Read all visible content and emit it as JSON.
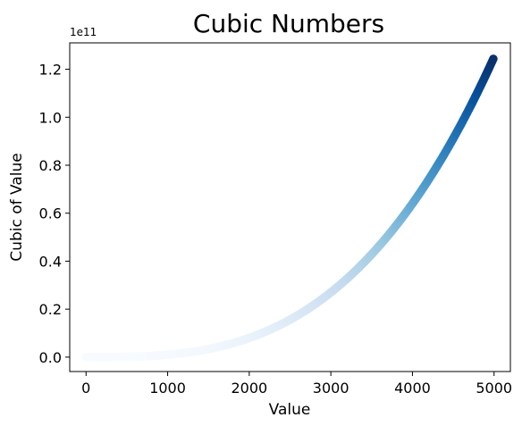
{
  "chart_data": {
    "type": "scatter",
    "title": "Cubic Numbers",
    "xlabel": "Value",
    "ylabel": "Cubic of Value",
    "y_offset_label": "1e11",
    "x_function": "y = x^3",
    "x_range": [
      1,
      5000
    ],
    "xlim": [
      -200,
      5200
    ],
    "ylim": [
      -0.06,
      1.31
    ],
    "y_unit_multiplier": 100000000000,
    "x_ticks": [
      0,
      1000,
      2000,
      3000,
      4000,
      5000
    ],
    "x_tick_labels": [
      "0",
      "1000",
      "2000",
      "3000",
      "4000",
      "5000"
    ],
    "y_ticks": [
      0.0,
      0.2,
      0.4,
      0.6,
      0.8,
      1.0,
      1.2
    ],
    "y_tick_labels": [
      "0.0",
      "0.2",
      "0.4",
      "0.6",
      "0.8",
      "1.0",
      "1.2"
    ],
    "colormap": "Blues",
    "color_low": "#f7fbff",
    "color_high": "#08306b",
    "grid": false,
    "legend": false
  }
}
